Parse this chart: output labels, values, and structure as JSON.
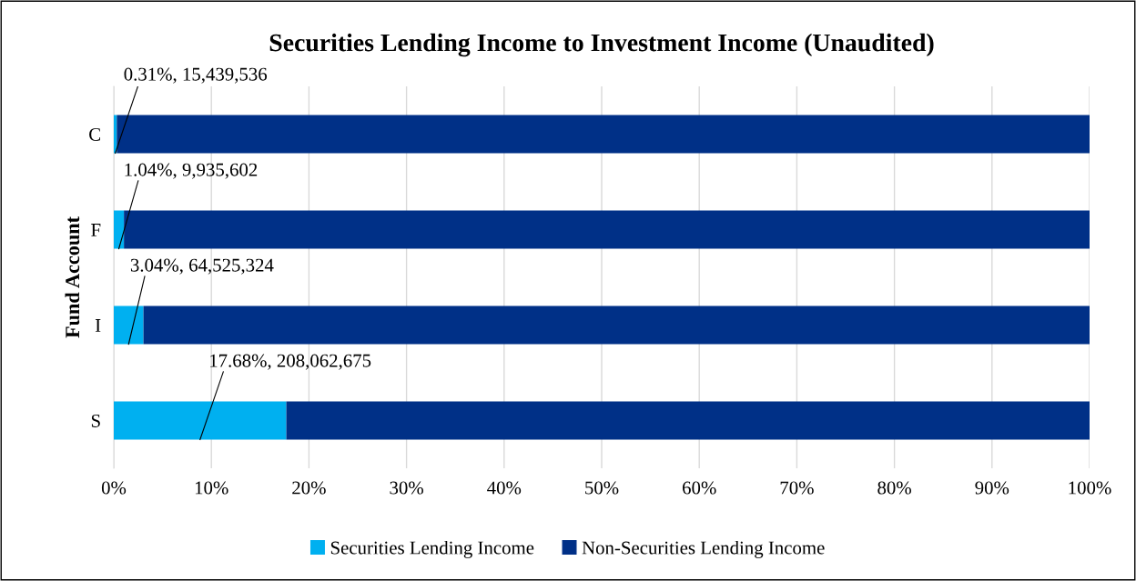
{
  "chart_data": {
    "type": "bar",
    "orientation": "horizontal",
    "stacked": true,
    "title": "Securities Lending Income to Investment Income (Unaudited)",
    "ylabel": "Fund Account",
    "categories": [
      "C",
      "F",
      "I",
      "S"
    ],
    "series": [
      {
        "name": "Securities Lending Income",
        "color": "#00b0f0",
        "values": [
          0.31,
          1.04,
          3.04,
          17.68
        ],
        "value_labels": [
          "0.31%, 15,439,536",
          "1.04%, 9,935,602",
          "3.04%, 64,525,324",
          "17.68%, 208,062,675"
        ]
      },
      {
        "name": "Non-Securities Lending Income",
        "color": "#003087",
        "values": [
          99.69,
          98.96,
          96.96,
          82.32
        ]
      }
    ],
    "xlim": [
      0,
      100
    ],
    "xticks": [
      {
        "value": 0,
        "label": "0%"
      },
      {
        "value": 10,
        "label": "10%"
      },
      {
        "value": 20,
        "label": "20%"
      },
      {
        "value": 30,
        "label": "30%"
      },
      {
        "value": 40,
        "label": "40%"
      },
      {
        "value": 50,
        "label": "50%"
      },
      {
        "value": 60,
        "label": "60%"
      },
      {
        "value": 70,
        "label": "70%"
      },
      {
        "value": 80,
        "label": "80%"
      },
      {
        "value": 90,
        "label": "90%"
      },
      {
        "value": 100,
        "label": "100%"
      }
    ],
    "grid": "x",
    "legend": "bottom"
  }
}
